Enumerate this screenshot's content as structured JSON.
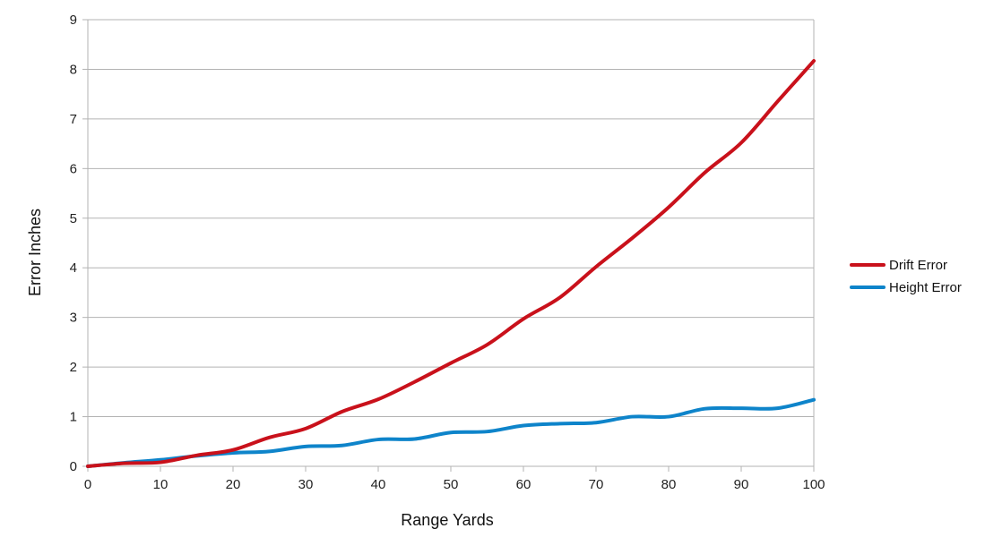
{
  "chart_data": {
    "type": "line",
    "title": "",
    "xlabel": "Range Yards",
    "ylabel": "Error Inches",
    "xlim": [
      0,
      100
    ],
    "ylim": [
      0,
      9
    ],
    "xticks": [
      "0",
      "10",
      "20",
      "30",
      "40",
      "50",
      "60",
      "70",
      "80",
      "90",
      "100"
    ],
    "yticks": [
      "0",
      "1",
      "2",
      "3",
      "4",
      "5",
      "6",
      "7",
      "8",
      "9"
    ],
    "grid": "horizontal",
    "legend_position": "right",
    "x": [
      0,
      5,
      10,
      15,
      20,
      25,
      30,
      35,
      40,
      45,
      50,
      55,
      60,
      65,
      70,
      75,
      80,
      85,
      90,
      95,
      100
    ],
    "series": [
      {
        "name": "Drift Error",
        "color": "#c9111b",
        "values": [
          0,
          0.06,
          0.08,
          0.22,
          0.33,
          0.58,
          0.76,
          1.1,
          1.35,
          1.7,
          2.08,
          2.45,
          2.97,
          3.4,
          4.02,
          4.6,
          5.22,
          5.92,
          6.52,
          7.35,
          8.17
        ]
      },
      {
        "name": "Height Error",
        "color": "#0e84ca",
        "values": [
          0,
          0.07,
          0.13,
          0.21,
          0.27,
          0.3,
          0.4,
          0.42,
          0.54,
          0.55,
          0.68,
          0.7,
          0.82,
          0.86,
          0.88,
          1.0,
          1.0,
          1.16,
          1.17,
          1.17,
          1.34
        ]
      }
    ]
  }
}
